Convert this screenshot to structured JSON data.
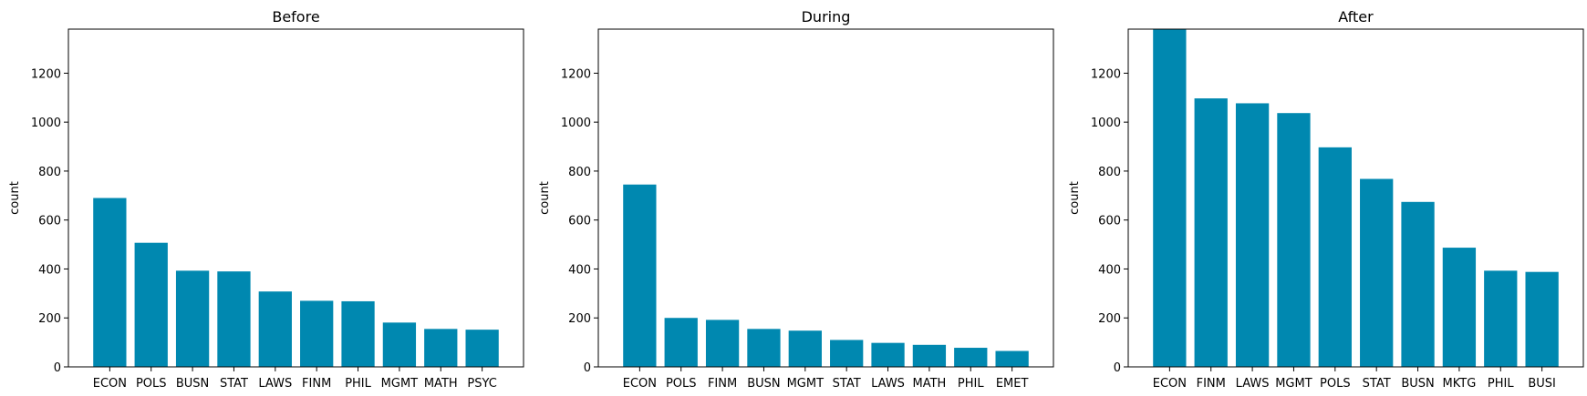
{
  "chart_data": [
    {
      "type": "bar",
      "title": "Before",
      "ylabel": "count",
      "xlabel": "",
      "ylim": [
        0,
        1380
      ],
      "yticks": [
        0,
        200,
        400,
        600,
        800,
        1000,
        1200
      ],
      "categories": [
        "ECON",
        "POLS",
        "BUSN",
        "STAT",
        "LAWS",
        "FINM",
        "PHIL",
        "MGMT",
        "MATH",
        "PSYC"
      ],
      "values": [
        690,
        507,
        393,
        390,
        308,
        270,
        268,
        181,
        155,
        152
      ],
      "color": "#0088b0"
    },
    {
      "type": "bar",
      "title": "During",
      "ylabel": "count",
      "xlabel": "",
      "ylim": [
        0,
        1380
      ],
      "yticks": [
        0,
        200,
        400,
        600,
        800,
        1000,
        1200
      ],
      "categories": [
        "ECON",
        "POLS",
        "FINM",
        "BUSN",
        "MGMT",
        "STAT",
        "LAWS",
        "MATH",
        "PHIL",
        "EMET"
      ],
      "values": [
        745,
        200,
        192,
        155,
        148,
        110,
        98,
        90,
        78,
        65
      ],
      "color": "#0088b0"
    },
    {
      "type": "bar",
      "title": "After",
      "ylabel": "count",
      "xlabel": "",
      "ylim": [
        0,
        1380
      ],
      "yticks": [
        0,
        200,
        400,
        600,
        800,
        1000,
        1200
      ],
      "categories": [
        "ECON",
        "FINM",
        "LAWS",
        "MGMT",
        "POLS",
        "STAT",
        "BUSN",
        "MKTG",
        "PHIL",
        "BUSI"
      ],
      "values": [
        1380,
        1097,
        1077,
        1037,
        897,
        768,
        674,
        487,
        393,
        388
      ],
      "color": "#0088b0"
    }
  ]
}
